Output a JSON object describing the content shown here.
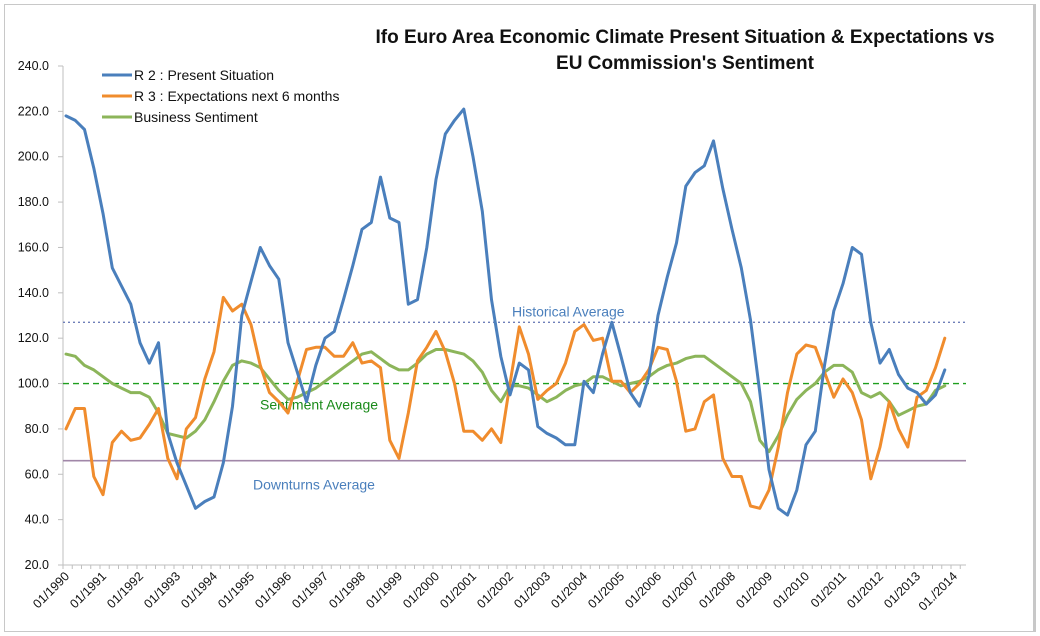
{
  "chart_data": {
    "type": "line",
    "title": [
      "Ifo Euro Area Economic Climate Present Situation & Expectations vs",
      "EU Commission's Sentiment"
    ],
    "xlabel": "",
    "ylabel": "",
    "ylim": [
      20,
      240
    ],
    "yticks": [
      20,
      40,
      60,
      80,
      100,
      120,
      140,
      160,
      180,
      200,
      220,
      240
    ],
    "ytick_labels": [
      "20.0",
      "40.0",
      "60.0",
      "80.0",
      "100.0",
      "120.0",
      "140.0",
      "160.0",
      "180.0",
      "200.0",
      "220.0",
      "240.0"
    ],
    "xtick_labels": [
      "01/1990",
      "01/1991",
      "01/1992",
      "01/1993",
      "01/1994",
      "01/1995",
      "01/1996",
      "01/1997",
      "01/1998",
      "01/1999",
      "01/2000",
      "01/2001",
      "01/2002",
      "01/2003",
      "01/2004",
      "01/2005",
      "01/2006",
      "01/2007",
      "01/2008",
      "01/2009",
      "01/2010",
      "01/2011",
      "01/2012",
      "01/2013",
      "01./2014"
    ],
    "x_start": "1990 Q1",
    "x_step": "quarter",
    "grid": false,
    "legend_position": "top-left",
    "series": [
      {
        "name": "R 2 : Present Situation",
        "color": "#4a7fbc",
        "values": [
          218,
          216,
          212,
          195,
          175,
          151,
          143,
          135,
          118,
          109,
          118,
          78,
          65,
          55,
          45,
          48,
          50,
          65,
          90,
          130,
          145,
          160,
          152,
          146,
          118,
          105,
          92,
          108,
          120,
          123,
          137,
          152,
          168,
          171,
          191,
          173,
          171,
          135,
          137,
          160,
          190,
          210,
          216,
          221,
          200,
          176,
          137,
          112,
          95,
          109,
          106,
          81,
          78,
          76,
          73,
          73,
          101,
          96,
          113,
          127,
          112,
          96,
          90,
          103,
          130,
          147,
          162,
          187,
          193,
          196,
          207,
          186,
          168,
          151,
          128,
          96,
          62,
          45,
          42,
          53,
          73,
          79,
          108,
          132,
          144,
          160,
          157,
          127,
          109,
          115,
          104,
          98,
          96,
          91,
          95,
          106
        ]
      },
      {
        "name": "R 3 : Expectations next 6 months",
        "color": "#f08c2d",
        "values": [
          80,
          89,
          89,
          59,
          51,
          74,
          79,
          75,
          76,
          82,
          89,
          67,
          58,
          80,
          85,
          102,
          114,
          138,
          132,
          135,
          126,
          108,
          96,
          92,
          87,
          101,
          115,
          116,
          116,
          112,
          112,
          118,
          109,
          110,
          107,
          75,
          67,
          87,
          110,
          116,
          123,
          114,
          100,
          79,
          79,
          75,
          80,
          74,
          100,
          125,
          113,
          93,
          97,
          100,
          109,
          123,
          126,
          119,
          120,
          101,
          101,
          96,
          100,
          106,
          116,
          115,
          101,
          79,
          80,
          92,
          95,
          67,
          59,
          59,
          46,
          45,
          53,
          72,
          96,
          113,
          117,
          116,
          105,
          94,
          102,
          96,
          84,
          58,
          72,
          92,
          80,
          72,
          94,
          97,
          107,
          120
        ]
      },
      {
        "name": "Business Sentiment",
        "color": "#8cb55a",
        "values": [
          113,
          112,
          108,
          106,
          103,
          100,
          98,
          96,
          96,
          94,
          87,
          78,
          77,
          76,
          79,
          84,
          92,
          101,
          108,
          110,
          109,
          107,
          102,
          97,
          93,
          94,
          96,
          98,
          101,
          104,
          107,
          110,
          113,
          114,
          111,
          108,
          106,
          106,
          109,
          113,
          115,
          115,
          114,
          113,
          110,
          105,
          97,
          92,
          99,
          99,
          98,
          95,
          92,
          94,
          97,
          99,
          100,
          103,
          103,
          101,
          99,
          100,
          101,
          103,
          106,
          108,
          109,
          111,
          112,
          112,
          109,
          106,
          103,
          100,
          92,
          75,
          70,
          77,
          86,
          93,
          97,
          100,
          105,
          108,
          108,
          105,
          96,
          94,
          96,
          92,
          86,
          88,
          90,
          91,
          97,
          99
        ]
      }
    ],
    "reference_lines": [
      {
        "name": "Historical Average",
        "value": 127,
        "color": "#6f7fb8",
        "style": "dotted",
        "label_color": "#4a7fbc"
      },
      {
        "name": "Sentiment Average",
        "value": 100,
        "color": "#1e9e1e",
        "style": "dashed",
        "label_color": "#1a8a1a"
      },
      {
        "name": "Downturns Average",
        "value": 66,
        "color": "#a187a8",
        "style": "solid",
        "label_color": "#4a7fbc"
      }
    ]
  }
}
